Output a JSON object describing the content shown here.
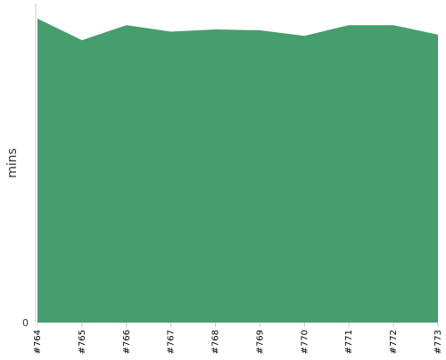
{
  "chart_data": {
    "type": "area",
    "ylabel": "mins",
    "x": [
      "#764",
      "#765",
      "#766",
      "#767",
      "#768",
      "#769",
      "#770",
      "#771",
      "#772",
      "#773"
    ],
    "y_ticks": [
      0
    ],
    "series": [
      {
        "values": [
          70.5,
          65.5,
          69.0,
          67.5,
          68.0,
          67.8,
          66.5,
          69.0,
          69.0,
          66.8
        ],
        "color": "#469d6d"
      }
    ],
    "ylim": [
      0,
      74
    ],
    "grid": false,
    "legend": "none"
  }
}
